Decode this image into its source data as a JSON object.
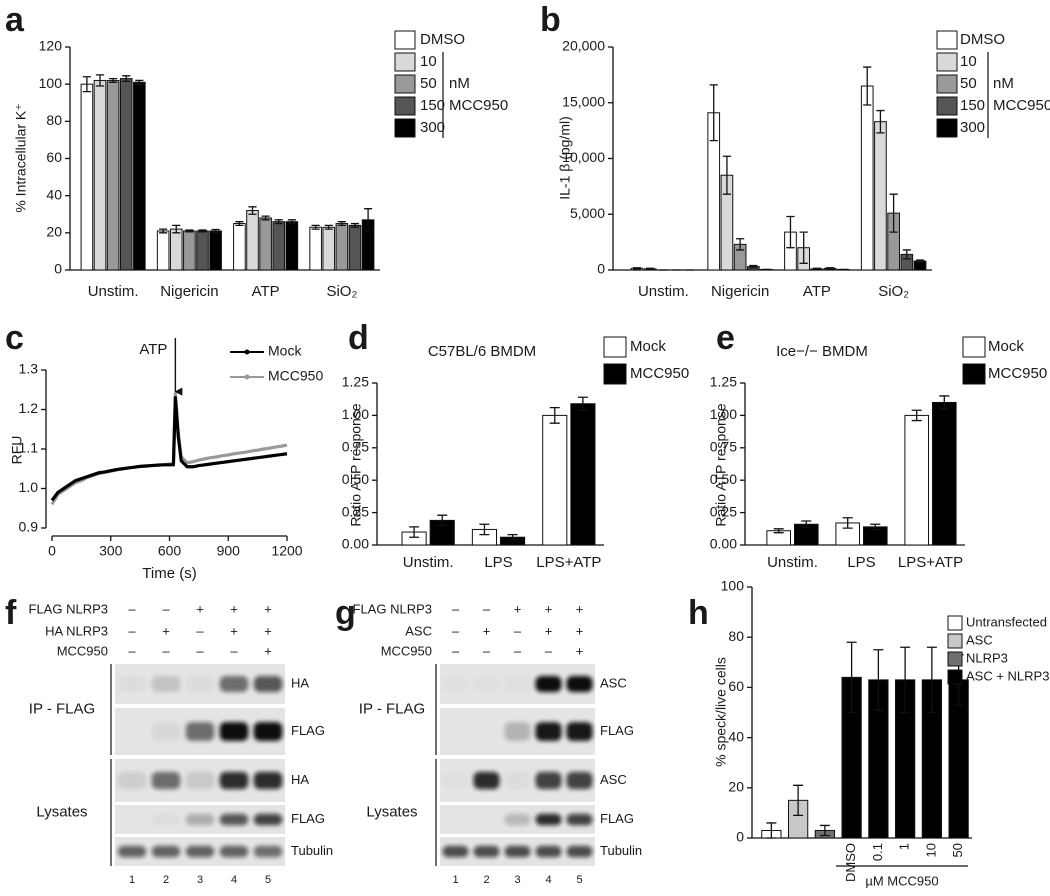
{
  "chart_data": [
    {
      "label": "a",
      "type": "bar",
      "y_label": "% Intracellular K⁺",
      "categories": [
        "Unstim.",
        "Nigericin",
        "ATP",
        "SiO₂"
      ],
      "series": [
        {
          "name": "DMSO",
          "color": "#ffffff",
          "values": [
            100,
            21,
            25,
            23
          ],
          "errors": [
            4,
            1,
            1,
            1
          ]
        },
        {
          "name": "10",
          "color": "#d9d9d9",
          "values": [
            102,
            22,
            32,
            23
          ],
          "errors": [
            3,
            2,
            2,
            1
          ]
        },
        {
          "name": "50",
          "color": "#999999",
          "values": [
            102,
            21,
            28,
            25
          ],
          "errors": [
            1,
            0.5,
            1,
            1
          ]
        },
        {
          "name": "150",
          "color": "#555555",
          "values": [
            103,
            21,
            26,
            24
          ],
          "errors": [
            1.5,
            0.5,
            1,
            1
          ]
        },
        {
          "name": "300",
          "color": "#000000",
          "values": [
            101,
            21,
            26,
            27
          ],
          "errors": [
            1,
            0.8,
            1,
            6
          ]
        }
      ],
      "legend_unit": "nM",
      "legend_group": "MCC950",
      "ylim": [
        0,
        120
      ],
      "yticks": [
        0,
        20,
        40,
        60,
        80,
        100,
        120
      ]
    },
    {
      "label": "b",
      "type": "bar",
      "y_label": "IL-1 β (pg/ml)",
      "categories": [
        "Unstim.",
        "Nigericin",
        "ATP",
        "SiO₂"
      ],
      "series": [
        {
          "name": "DMSO",
          "color": "#ffffff",
          "values": [
            150,
            14100,
            3400,
            16500
          ],
          "errors": [
            50,
            2500,
            1400,
            1700
          ]
        },
        {
          "name": "10",
          "color": "#d9d9d9",
          "values": [
            100,
            8500,
            2000,
            13300
          ],
          "errors": [
            50,
            1700,
            1400,
            1000
          ]
        },
        {
          "name": "50",
          "color": "#999999",
          "values": [
            0,
            2300,
            100,
            5100
          ],
          "errors": [
            0,
            500,
            50,
            1700
          ]
        },
        {
          "name": "150",
          "color": "#555555",
          "values": [
            0,
            300,
            150,
            1400
          ],
          "errors": [
            0,
            100,
            50,
            400
          ]
        },
        {
          "name": "300",
          "color": "#000000",
          "values": [
            0,
            50,
            50,
            800
          ],
          "errors": [
            0,
            0,
            0,
            100
          ]
        }
      ],
      "legend_unit": "nM",
      "legend_group": "MCC950",
      "ylim": [
        0,
        20000
      ],
      "yticks": [
        0,
        {
          "value": 5000,
          "label": "5,000"
        },
        {
          "value": 10000,
          "label": "10,000"
        },
        {
          "value": 15000,
          "label": "15,000"
        },
        {
          "value": 20000,
          "label": "20,000"
        }
      ]
    },
    {
      "label": "c",
      "type": "line",
      "x_label": "Time (s)",
      "y_label": "RFU",
      "annotation": "ATP",
      "x": [
        0,
        30,
        60,
        90,
        120,
        150,
        180,
        210,
        240,
        270,
        300,
        330,
        360,
        390,
        420,
        450,
        480,
        510,
        540,
        570,
        600,
        620,
        630,
        645,
        660,
        690,
        720,
        750,
        780,
        810,
        840,
        870,
        900,
        930,
        960,
        990,
        1020,
        1050,
        1080,
        1110,
        1140,
        1170,
        1200
      ],
      "series": [
        {
          "name": "Mock",
          "color": "#000000",
          "values": [
            0.97,
            0.99,
            1.0,
            1.01,
            1.02,
            1.025,
            1.03,
            1.035,
            1.04,
            1.042,
            1.045,
            1.048,
            1.05,
            1.052,
            1.054,
            1.056,
            1.057,
            1.058,
            1.059,
            1.06,
            1.06,
            1.06,
            1.23,
            1.13,
            1.07,
            1.055,
            1.055,
            1.058,
            1.06,
            1.062,
            1.064,
            1.066,
            1.068,
            1.07,
            1.072,
            1.074,
            1.076,
            1.078,
            1.08,
            1.082,
            1.084,
            1.086,
            1.088
          ]
        },
        {
          "name": "MCC950",
          "color": "#999999",
          "values": [
            0.96,
            0.985,
            0.995,
            1.005,
            1.015,
            1.02,
            1.028,
            1.033,
            1.038,
            1.041,
            1.044,
            1.047,
            1.05,
            1.052,
            1.054,
            1.056,
            1.057,
            1.058,
            1.06,
            1.06,
            1.062,
            1.062,
            1.24,
            1.14,
            1.08,
            1.065,
            1.068,
            1.072,
            1.075,
            1.078,
            1.08,
            1.083,
            1.085,
            1.088,
            1.09,
            1.092,
            1.095,
            1.097,
            1.1,
            1.102,
            1.105,
            1.107,
            1.11
          ]
        }
      ],
      "xlim": [
        0,
        1200
      ],
      "xticks": [
        0,
        300,
        600,
        900,
        1200
      ],
      "ylim": [
        0.9,
        1.3
      ],
      "yticks": [
        0.9,
        {
          "value": 1,
          "label": "1.0"
        },
        1.1,
        1.2,
        1.3
      ]
    },
    {
      "label": "d",
      "type": "bar",
      "title": "C57BL/6 BMDM",
      "y_label": "Ratio ATP response",
      "categories": [
        "Unstim.",
        "LPS",
        "LPS+ATP"
      ],
      "series": [
        {
          "name": "Mock",
          "color": "#ffffff",
          "values": [
            0.1,
            0.12,
            1.0
          ],
          "errors": [
            0.04,
            0.04,
            0.06
          ]
        },
        {
          "name": "MCC950",
          "color": "#000000",
          "values": [
            0.19,
            0.06,
            1.09
          ],
          "errors": [
            0.04,
            0.02,
            0.05
          ]
        }
      ],
      "ylim": [
        0,
        1.25
      ],
      "yticks": [
        {
          "value": 0,
          "label": "0.00"
        },
        0.25,
        {
          "value": 0.5,
          "label": "0.50"
        },
        0.75,
        {
          "value": 1,
          "label": "1.00"
        },
        1.25
      ]
    },
    {
      "label": "e",
      "type": "bar",
      "title": "Ice−/− BMDM",
      "y_label": "Ratio ATP response",
      "categories": [
        "Unstim.",
        "LPS",
        "LPS+ATP"
      ],
      "series": [
        {
          "name": "Mock",
          "color": "#ffffff",
          "values": [
            0.11,
            0.17,
            1.0
          ],
          "errors": [
            0.015,
            0.04,
            0.04
          ]
        },
        {
          "name": "MCC950",
          "color": "#000000",
          "values": [
            0.16,
            0.14,
            1.1
          ],
          "errors": [
            0.025,
            0.02,
            0.05
          ]
        }
      ],
      "ylim": [
        0,
        1.25
      ],
      "yticks": [
        {
          "value": 0,
          "label": "0.00"
        },
        0.25,
        {
          "value": 0.5,
          "label": "0.50"
        },
        0.75,
        {
          "value": 1,
          "label": "1.00"
        },
        1.25
      ]
    },
    {
      "label": "h",
      "type": "bar",
      "y_label": "% speck/live cells",
      "x_group_label": "µM MCC950",
      "categories": [
        null,
        null,
        null,
        "DMSO",
        "0.1",
        "1",
        "10",
        "50"
      ],
      "series": [
        {
          "name": "Untransfected",
          "color": "#ffffff",
          "values": [
            3,
            null,
            null,
            null,
            null,
            null,
            null,
            null
          ],
          "errors": [
            3,
            null,
            null,
            null,
            null,
            null,
            null,
            null
          ]
        },
        {
          "name": "ASC",
          "color": "#c8c8c8",
          "values": [
            null,
            15,
            null,
            null,
            null,
            null,
            null,
            null
          ],
          "errors": [
            null,
            6,
            null,
            null,
            null,
            null,
            null,
            null
          ]
        },
        {
          "name": "NLRP3",
          "color": "#707070",
          "values": [
            null,
            null,
            3,
            null,
            null,
            null,
            null,
            null
          ],
          "errors": [
            null,
            null,
            2,
            null,
            null,
            null,
            null,
            null
          ]
        },
        {
          "name": "ASC + NLRP3",
          "color": "#000000",
          "values": [
            null,
            null,
            null,
            64,
            63,
            63,
            63,
            63
          ],
          "errors": [
            null,
            null,
            null,
            14,
            12,
            13,
            13,
            10
          ]
        }
      ],
      "ylim": [
        0,
        100
      ],
      "yticks": [
        0,
        20,
        40,
        60,
        80,
        100
      ]
    }
  ],
  "blots": [
    {
      "label": "f",
      "conditions": [
        {
          "label": "FLAG NLRP3",
          "signs": [
            "–",
            "–",
            "+",
            "+",
            "+"
          ]
        },
        {
          "label": "HA NLRP3",
          "signs": [
            "–",
            "+",
            "–",
            "+",
            "+"
          ]
        },
        {
          "label": "MCC950",
          "signs": [
            "–",
            "–",
            "–",
            "–",
            "+"
          ]
        }
      ],
      "sections": [
        {
          "label": "IP - FLAG",
          "rows": [
            "HA",
            "FLAG"
          ]
        },
        {
          "label": "Lysates",
          "rows": [
            "HA",
            "FLAG",
            "Tubulin"
          ]
        }
      ],
      "lanes": [
        "1",
        "2",
        "3",
        "4",
        "5"
      ]
    },
    {
      "label": "g",
      "conditions": [
        {
          "label": "FLAG NLRP3",
          "signs": [
            "–",
            "–",
            "+",
            "+",
            "+"
          ]
        },
        {
          "label": "ASC",
          "signs": [
            "–",
            "+",
            "–",
            "+",
            "+"
          ]
        },
        {
          "label": "MCC950",
          "signs": [
            "–",
            "–",
            "–",
            "–",
            "+"
          ]
        }
      ],
      "sections": [
        {
          "label": "IP - FLAG",
          "rows": [
            "ASC",
            "FLAG"
          ]
        },
        {
          "label": "Lysates",
          "rows": [
            "ASC",
            "FLAG",
            "Tubulin"
          ]
        }
      ],
      "lanes": [
        "1",
        "2",
        "3",
        "4",
        "5"
      ]
    }
  ]
}
